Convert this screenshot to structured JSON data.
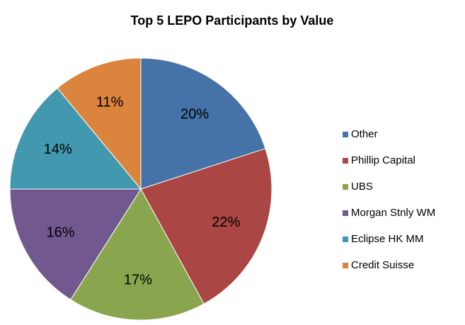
{
  "chart_data": {
    "type": "pie",
    "title": "Top 5 LEPO Participants by Value",
    "categories": [
      "Other",
      "Phillip Capital",
      "UBS",
      "Morgan Stnly WM",
      "Eclipse HK MM",
      "Credit Suisse"
    ],
    "values": [
      20,
      22,
      17,
      16,
      14,
      11
    ],
    "value_labels": [
      "20%",
      "22%",
      "17%",
      "16%",
      "14%",
      "11%"
    ],
    "colors": [
      "#4572a7",
      "#aa4643",
      "#89a54e",
      "#71588f",
      "#4198af",
      "#db843d"
    ],
    "legend": "right"
  }
}
